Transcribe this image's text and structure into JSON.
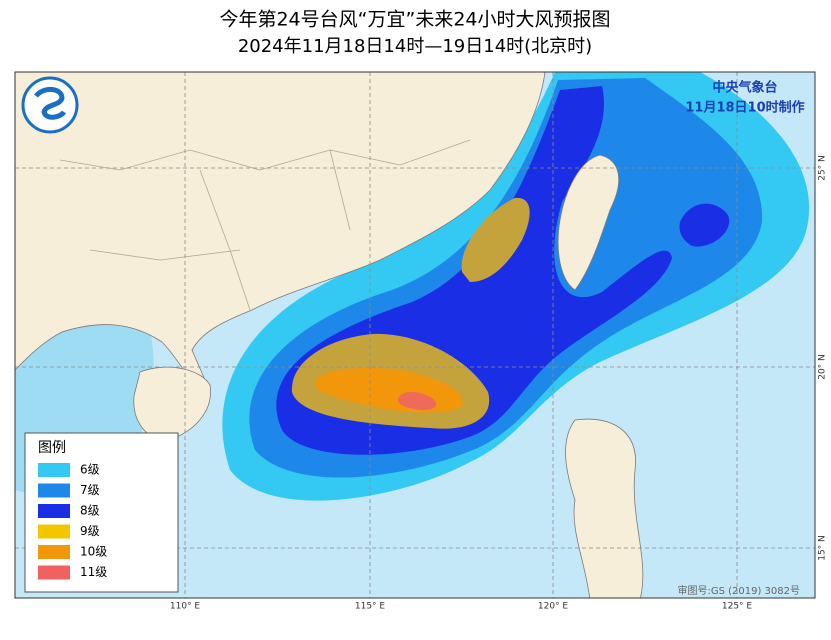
{
  "header": {
    "title": "今年第24号台风“万宜”未来24小时大风预报图",
    "subtitle": "2024年11月18日14时—19日14时(北京时)"
  },
  "agency": {
    "name": "中央气象台",
    "issued": "11月18日10时制作"
  },
  "legend": {
    "title": "图例",
    "items": [
      {
        "label": "6级",
        "color": "#33c9f2"
      },
      {
        "label": "7级",
        "color": "#1e88ea"
      },
      {
        "label": "8级",
        "color": "#1a2ee6"
      },
      {
        "label": "9级",
        "color": "#f2c700"
      },
      {
        "label": "10级",
        "color": "#f2960a"
      },
      {
        "label": "11级",
        "color": "#f06262"
      }
    ]
  },
  "axes": {
    "lon": [
      "110° E",
      "115° E",
      "120° E",
      "125° E"
    ],
    "lat": [
      "25° N",
      "20° N",
      "15° N"
    ]
  },
  "approval": "审图号:GS (2019) 3082号"
}
